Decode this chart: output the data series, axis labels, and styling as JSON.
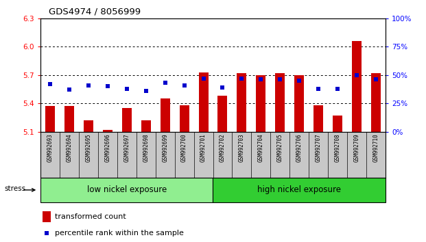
{
  "title": "GDS4974 / 8056999",
  "samples": [
    "GSM992693",
    "GSM992694",
    "GSM992695",
    "GSM992696",
    "GSM992697",
    "GSM992698",
    "GSM992699",
    "GSM992700",
    "GSM992701",
    "GSM992702",
    "GSM992703",
    "GSM992704",
    "GSM992705",
    "GSM992706",
    "GSM992707",
    "GSM992708",
    "GSM992709",
    "GSM992710"
  ],
  "transformed_counts": [
    5.37,
    5.37,
    5.22,
    5.12,
    5.35,
    5.22,
    5.45,
    5.38,
    5.73,
    5.48,
    5.72,
    5.7,
    5.72,
    5.7,
    5.38,
    5.27,
    6.06,
    5.72
  ],
  "percentile_ranks": [
    42,
    37,
    41,
    40,
    38,
    36,
    43,
    41,
    47,
    39,
    47,
    46,
    46,
    45,
    38,
    38,
    50,
    46
  ],
  "ylim_left": [
    5.1,
    6.3
  ],
  "ylim_right": [
    0,
    100
  ],
  "yticks_left": [
    5.1,
    5.4,
    5.7,
    6.0,
    6.3
  ],
  "yticks_right": [
    0,
    25,
    50,
    75,
    100
  ],
  "ytick_labels_right": [
    "0%",
    "25%",
    "50%",
    "75%",
    "100%"
  ],
  "bar_color": "#cc0000",
  "dot_color": "#0000cc",
  "group1_label": "low nickel exposure",
  "group2_label": "high nickel exposure",
  "group1_count": 9,
  "group2_count": 9,
  "stress_label": "stress",
  "legend_bar_label": "transformed count",
  "legend_dot_label": "percentile rank within the sample",
  "background_color": "#ffffff",
  "tick_bg_color": "#c8c8c8",
  "group1_bg": "#90ee90",
  "group2_bg": "#32cd32",
  "base_value": 5.1,
  "grid_lines": [
    5.4,
    5.7,
    6.0
  ],
  "bar_width": 0.5
}
